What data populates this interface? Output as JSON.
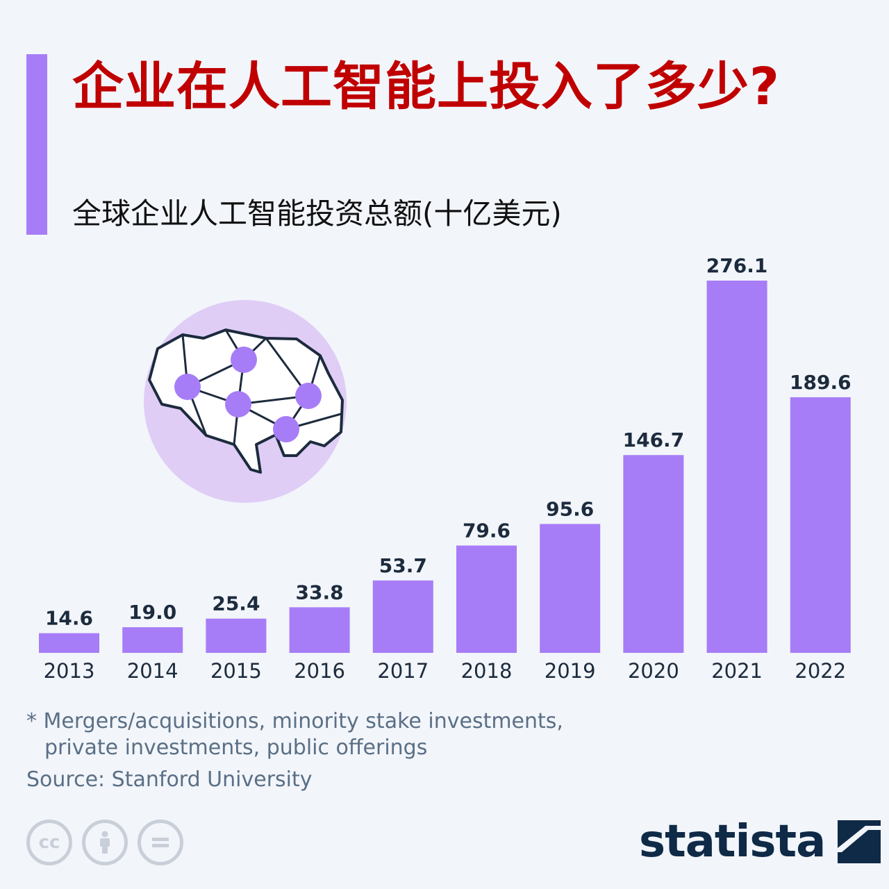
{
  "header": {
    "title": "企业在人工智能上投入了多少?",
    "subtitle": "全球企业人工智能投资总额(十亿美元)"
  },
  "chart_data": {
    "type": "bar",
    "title": "企业在人工智能上投入了多少?",
    "subtitle": "全球企业人工智能投资总额(十亿美元)",
    "categories": [
      "2013",
      "2014",
      "2015",
      "2016",
      "2017",
      "2018",
      "2019",
      "2020",
      "2021",
      "2022"
    ],
    "values": [
      14.6,
      19.0,
      25.4,
      33.8,
      53.7,
      79.6,
      95.6,
      146.7,
      276.1,
      189.6
    ],
    "value_labels": [
      "14.6",
      "19.0",
      "25.4",
      "33.8",
      "53.7",
      "79.6",
      "95.6",
      "146.7",
      "276.1",
      "189.6"
    ],
    "xlabel": "",
    "ylabel": "",
    "ylim": [
      0,
      276.1
    ],
    "grid": false
  },
  "footer": {
    "note_line1": "* Mergers/acquisitions, minority stake investments,",
    "note_line2": "private investments, public offerings",
    "source": "Source: Stanford University",
    "brand": "statista",
    "license_icons": [
      "cc-icon",
      "attribution-icon",
      "no-derivatives-icon"
    ]
  },
  "colors": {
    "bar": "#a77df7",
    "title": "#c00000",
    "accent": "#a77df7",
    "background": "#f2f5fa",
    "brand": "#0f2a47"
  }
}
